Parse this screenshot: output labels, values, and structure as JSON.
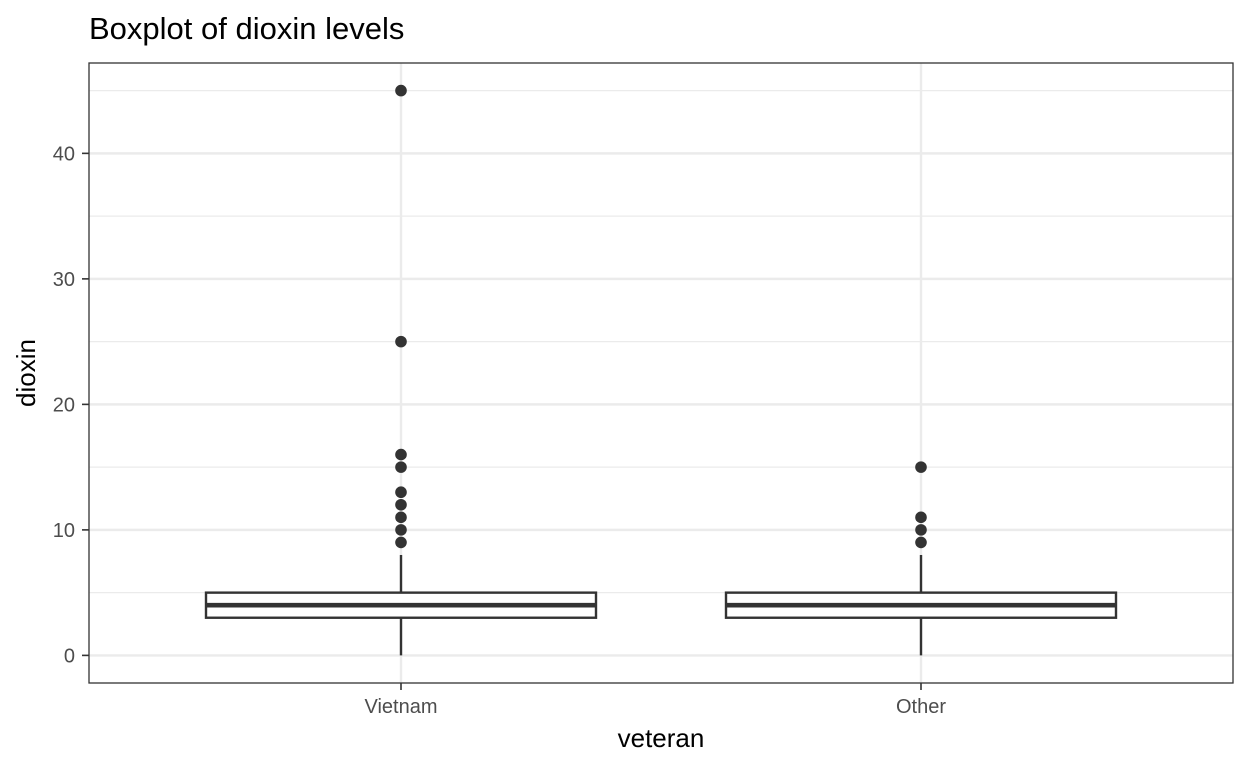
{
  "chart_data": {
    "type": "boxplot",
    "title": "Boxplot of dioxin levels",
    "xlabel": "veteran",
    "ylabel": "dioxin",
    "categories": [
      "Vietnam",
      "Other"
    ],
    "ylim": [
      -2.2,
      47.2
    ],
    "yticks": [
      0,
      10,
      20,
      30,
      40
    ],
    "grid": true,
    "legend": "none",
    "boxes": [
      {
        "category": "Vietnam",
        "whisker_low": 0,
        "q1": 3,
        "median": 4,
        "q3": 5,
        "whisker_high": 8,
        "outliers": [
          9,
          10,
          11,
          12,
          13,
          15,
          16,
          25,
          45
        ]
      },
      {
        "category": "Other",
        "whisker_low": 0,
        "q1": 3,
        "median": 4,
        "q3": 5,
        "whisker_high": 8,
        "outliers": [
          9,
          10,
          11,
          15
        ]
      }
    ]
  },
  "colors": {
    "panel_border": "#333333",
    "grid_major": "#ebebeb",
    "grid_minor": "#ebebeb",
    "box_line": "#333333",
    "box_fill": "#ffffff",
    "outlier": "#333333",
    "tick_text": "#4d4d4d",
    "text": "#000000"
  }
}
